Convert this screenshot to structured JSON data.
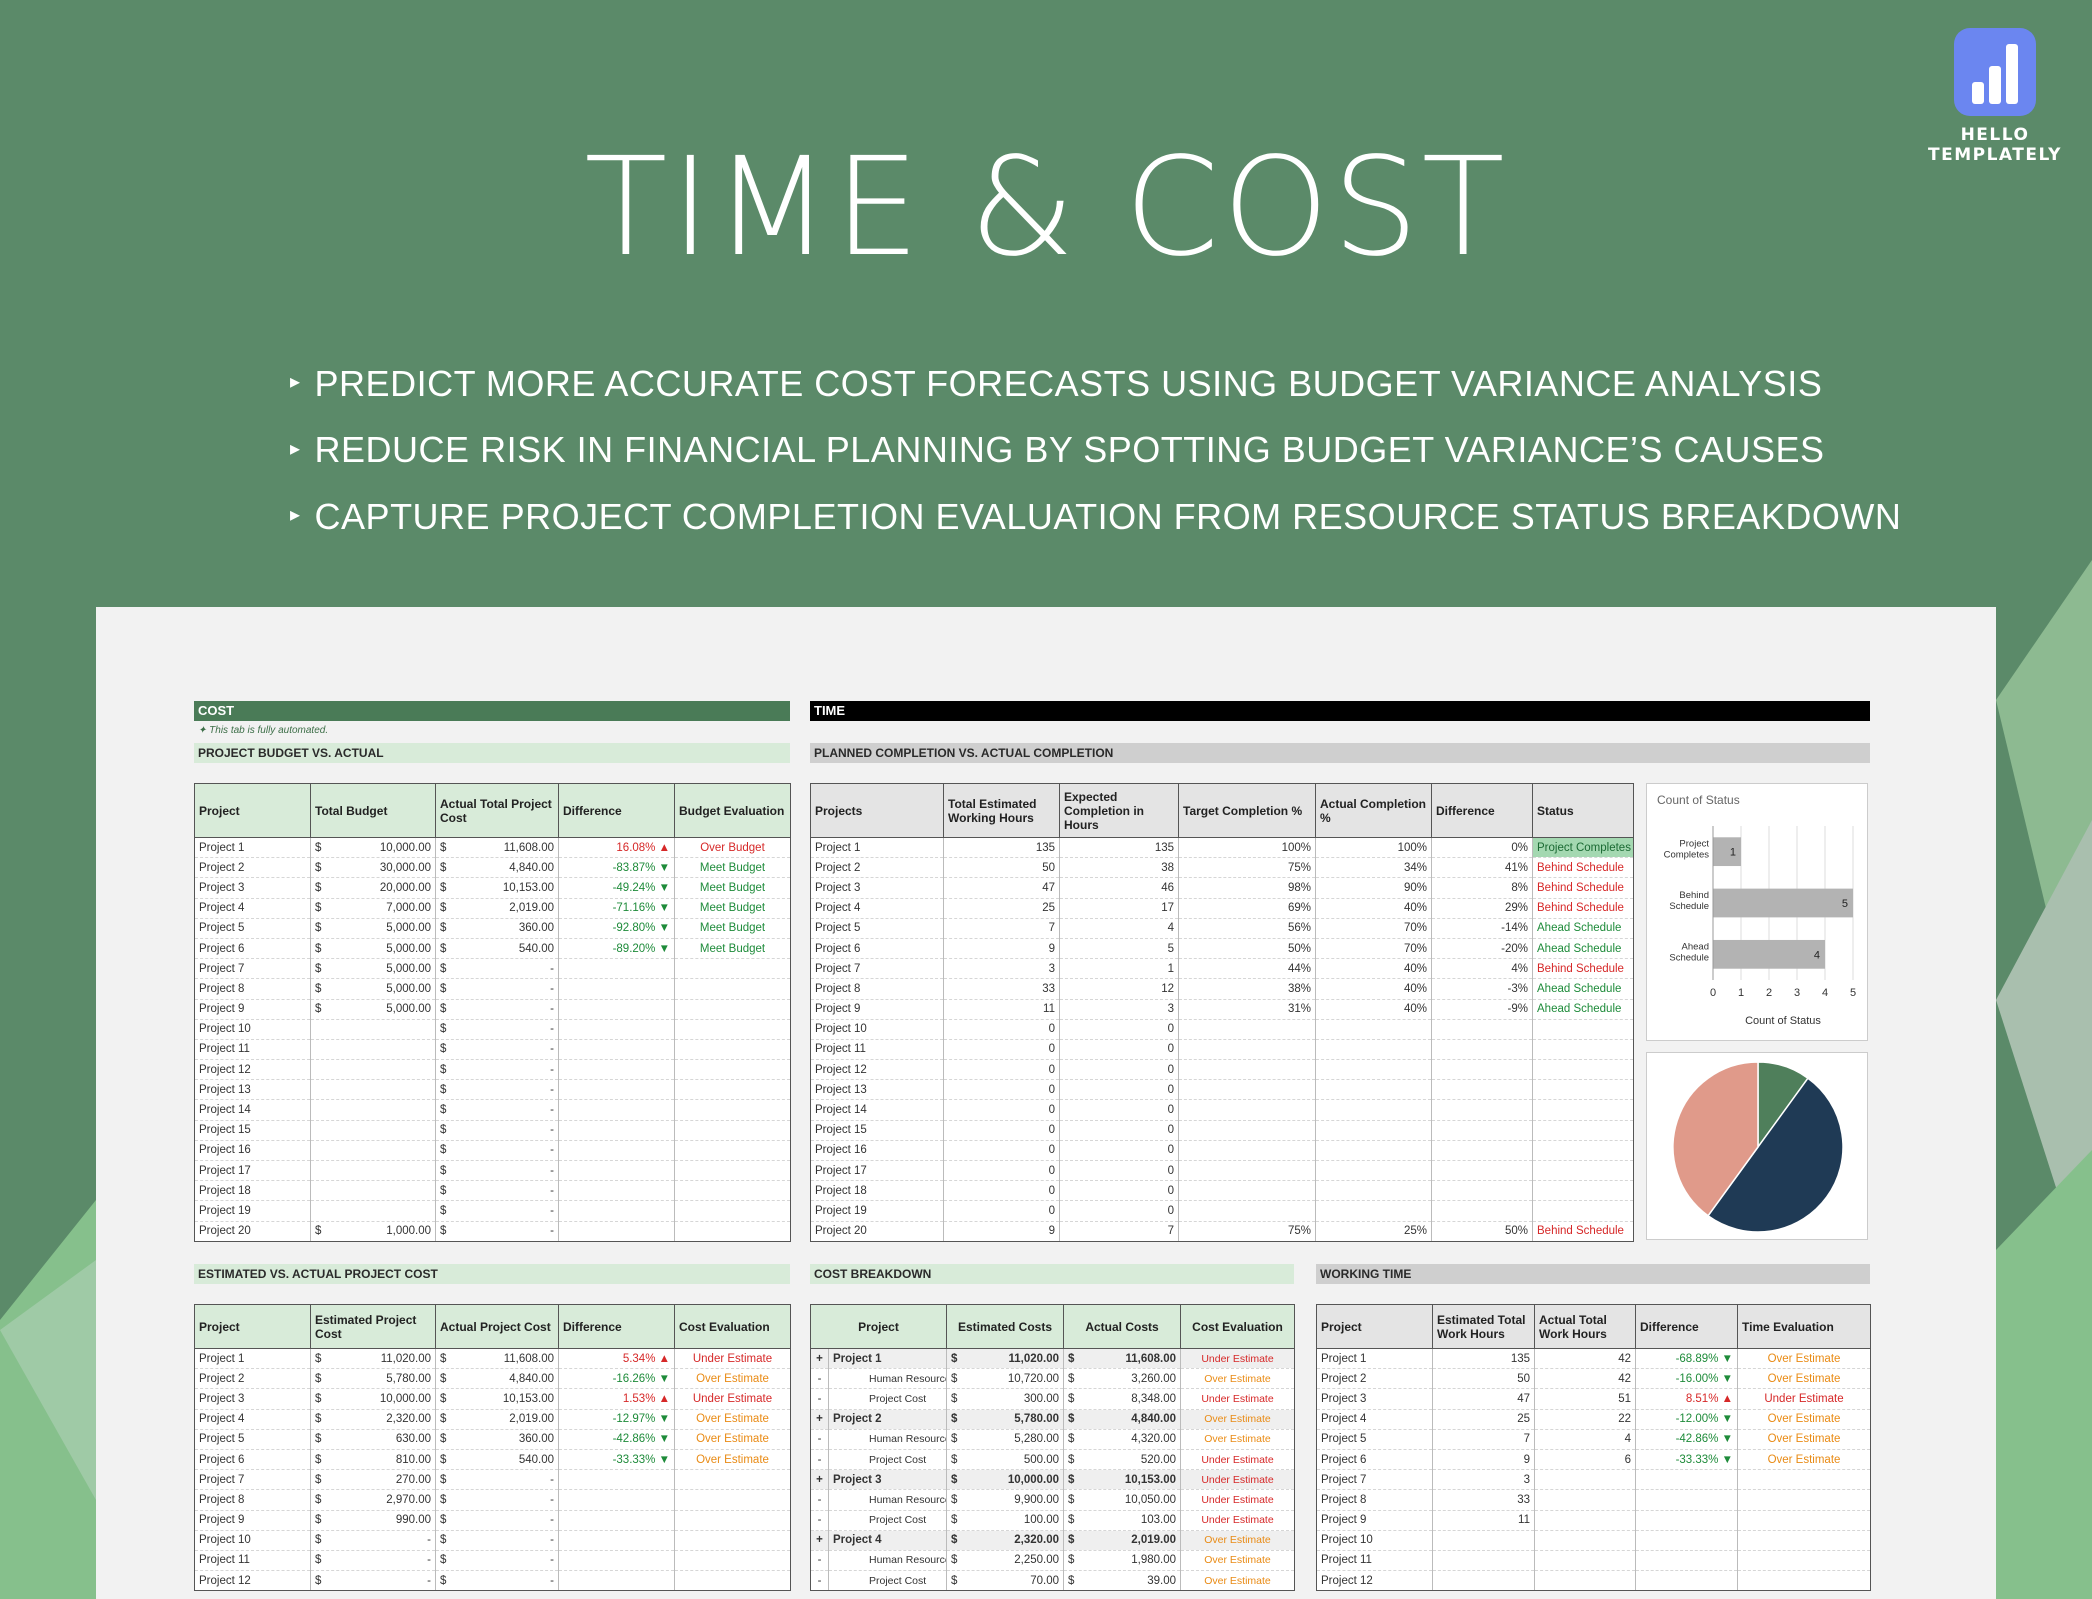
{
  "brand": {
    "name": "HELLO TEMPLATELY",
    "color": "#6b86f0"
  },
  "hero": {
    "title": "TIME & COST",
    "features": [
      "PREDICT MORE ACCURATE COST FORECASTS USING BUDGET VARIANCE ANALYSIS",
      "REDUCE RISK IN FINANCIAL PLANNING BY SPOTTING BUDGET VARIANCE’S CAUSES",
      "CAPTURE PROJECT COMPLETION EVALUATION FROM RESOURCE STATUS BREAKDOWN"
    ],
    "background": "#5b8a69"
  },
  "cost": {
    "header": "COST",
    "note": "✦ This tab is fully automated.",
    "budget_title": "PROJECT BUDGET VS. ACTUAL",
    "budget_columns": [
      "Project",
      "Total Budget",
      "Actual Total Project Cost",
      "Difference",
      "Budget Evaluation"
    ],
    "budget_rows": [
      [
        "Project 1",
        "10,000.00",
        "11,608.00",
        "16.08%",
        "up",
        "Over Budget"
      ],
      [
        "Project 2",
        "30,000.00",
        "4,840.00",
        "-83.87%",
        "down",
        "Meet Budget"
      ],
      [
        "Project 3",
        "20,000.00",
        "10,153.00",
        "-49.24%",
        "down",
        "Meet Budget"
      ],
      [
        "Project 4",
        "7,000.00",
        "2,019.00",
        "-71.16%",
        "down",
        "Meet Budget"
      ],
      [
        "Project 5",
        "5,000.00",
        "360.00",
        "-92.80%",
        "down",
        "Meet Budget"
      ],
      [
        "Project 6",
        "5,000.00",
        "540.00",
        "-89.20%",
        "down",
        "Meet Budget"
      ],
      [
        "Project 7",
        "5,000.00",
        "-",
        "",
        "",
        ""
      ],
      [
        "Project 8",
        "5,000.00",
        "-",
        "",
        "",
        ""
      ],
      [
        "Project 9",
        "5,000.00",
        "-",
        "",
        "",
        ""
      ],
      [
        "Project 10",
        "",
        "-",
        "",
        "",
        ""
      ],
      [
        "Project 11",
        "",
        "-",
        "",
        "",
        ""
      ],
      [
        "Project 12",
        "",
        "-",
        "",
        "",
        ""
      ],
      [
        "Project 13",
        "",
        "-",
        "",
        "",
        ""
      ],
      [
        "Project 14",
        "",
        "-",
        "",
        "",
        ""
      ],
      [
        "Project 15",
        "",
        "-",
        "",
        "",
        ""
      ],
      [
        "Project 16",
        "",
        "-",
        "",
        "",
        ""
      ],
      [
        "Project 17",
        "",
        "-",
        "",
        "",
        ""
      ],
      [
        "Project 18",
        "",
        "-",
        "",
        "",
        ""
      ],
      [
        "Project 19",
        "",
        "-",
        "",
        "",
        ""
      ],
      [
        "Project 20",
        "1,000.00",
        "-",
        "",
        "",
        ""
      ]
    ],
    "est_title": "ESTIMATED VS. ACTUAL PROJECT COST",
    "est_columns": [
      "Project",
      "Estimated Project Cost",
      "Actual Project Cost",
      "Difference",
      "Cost Evaluation"
    ],
    "est_rows": [
      [
        "Project 1",
        "11,020.00",
        "11,608.00",
        "5.34%",
        "up",
        "Under Estimate"
      ],
      [
        "Project 2",
        "5,780.00",
        "4,840.00",
        "-16.26%",
        "down",
        "Over Estimate"
      ],
      [
        "Project 3",
        "10,000.00",
        "10,153.00",
        "1.53%",
        "up",
        "Under Estimate"
      ],
      [
        "Project 4",
        "2,320.00",
        "2,019.00",
        "-12.97%",
        "down",
        "Over Estimate"
      ],
      [
        "Project 5",
        "630.00",
        "360.00",
        "-42.86%",
        "down",
        "Over Estimate"
      ],
      [
        "Project 6",
        "810.00",
        "540.00",
        "-33.33%",
        "down",
        "Over Estimate"
      ],
      [
        "Project 7",
        "270.00",
        "-",
        "",
        "",
        ""
      ],
      [
        "Project 8",
        "2,970.00",
        "-",
        "",
        "",
        ""
      ],
      [
        "Project 9",
        "990.00",
        "-",
        "",
        "",
        ""
      ],
      [
        "Project 10",
        "-",
        "-",
        "",
        "",
        ""
      ],
      [
        "Project 11",
        "-",
        "-",
        "",
        "",
        ""
      ],
      [
        "Project 12",
        "-",
        "-",
        "",
        "",
        ""
      ]
    ]
  },
  "time": {
    "header": "TIME",
    "planned_title": "PLANNED COMPLETION VS. ACTUAL COMPLETION",
    "planned_columns": [
      "Projects",
      "Total Estimated Working Hours",
      "Expected Completion in Hours",
      "Target Completion %",
      "Actual Completion %",
      "Difference",
      "Status"
    ],
    "planned_rows": [
      [
        "Project 1",
        "135",
        "135",
        "100%",
        "100%",
        "0%",
        "Project Completes"
      ],
      [
        "Project 2",
        "50",
        "38",
        "75%",
        "34%",
        "41%",
        "Behind Schedule"
      ],
      [
        "Project 3",
        "47",
        "46",
        "98%",
        "90%",
        "8%",
        "Behind Schedule"
      ],
      [
        "Project 4",
        "25",
        "17",
        "69%",
        "40%",
        "29%",
        "Behind Schedule"
      ],
      [
        "Project 5",
        "7",
        "4",
        "56%",
        "70%",
        "-14%",
        "Ahead Schedule"
      ],
      [
        "Project 6",
        "9",
        "5",
        "50%",
        "70%",
        "-20%",
        "Ahead Schedule"
      ],
      [
        "Project 7",
        "3",
        "1",
        "44%",
        "40%",
        "4%",
        "Behind Schedule"
      ],
      [
        "Project 8",
        "33",
        "12",
        "38%",
        "40%",
        "-3%",
        "Ahead Schedule"
      ],
      [
        "Project 9",
        "11",
        "3",
        "31%",
        "40%",
        "-9%",
        "Ahead Schedule"
      ],
      [
        "Project 10",
        "0",
        "0",
        "",
        "",
        "",
        ""
      ],
      [
        "Project 11",
        "0",
        "0",
        "",
        "",
        "",
        ""
      ],
      [
        "Project 12",
        "0",
        "0",
        "",
        "",
        "",
        ""
      ],
      [
        "Project 13",
        "0",
        "0",
        "",
        "",
        "",
        ""
      ],
      [
        "Project 14",
        "0",
        "0",
        "",
        "",
        "",
        ""
      ],
      [
        "Project 15",
        "0",
        "0",
        "",
        "",
        "",
        ""
      ],
      [
        "Project 16",
        "0",
        "0",
        "",
        "",
        "",
        ""
      ],
      [
        "Project 17",
        "0",
        "0",
        "",
        "",
        "",
        ""
      ],
      [
        "Project 18",
        "0",
        "0",
        "",
        "",
        "",
        ""
      ],
      [
        "Project 19",
        "0",
        "0",
        "",
        "",
        "",
        ""
      ],
      [
        "Project 20",
        "9",
        "7",
        "75%",
        "25%",
        "50%",
        "Behind Schedule"
      ]
    ],
    "breakdown_title": "COST BREAKDOWN",
    "breakdown_columns": [
      "Project",
      "Estimated Costs",
      "Actual Costs",
      "Cost Evaluation"
    ],
    "breakdown_rows": [
      [
        "+",
        "Project 1",
        "11,020.00",
        "11,608.00",
        "Under Estimate",
        "group"
      ],
      [
        "-",
        "Human Resource",
        "10,720.00",
        "3,260.00",
        "Over Estimate",
        "item"
      ],
      [
        "-",
        "Project Cost",
        "300.00",
        "8,348.00",
        "Under Estimate",
        "item"
      ],
      [
        "+",
        "Project 2",
        "5,780.00",
        "4,840.00",
        "Over Estimate",
        "group"
      ],
      [
        "-",
        "Human Resource",
        "5,280.00",
        "4,320.00",
        "Over Estimate",
        "item"
      ],
      [
        "-",
        "Project Cost",
        "500.00",
        "520.00",
        "Under Estimate",
        "item"
      ],
      [
        "+",
        "Project 3",
        "10,000.00",
        "10,153.00",
        "Under Estimate",
        "group"
      ],
      [
        "-",
        "Human Resource",
        "9,900.00",
        "10,050.00",
        "Under Estimate",
        "item"
      ],
      [
        "-",
        "Project Cost",
        "100.00",
        "103.00",
        "Under Estimate",
        "item"
      ],
      [
        "+",
        "Project 4",
        "2,320.00",
        "2,019.00",
        "Over Estimate",
        "group"
      ],
      [
        "-",
        "Human Resource",
        "2,250.00",
        "1,980.00",
        "Over Estimate",
        "item"
      ],
      [
        "-",
        "Project Cost",
        "70.00",
        "39.00",
        "Over Estimate",
        "item"
      ]
    ],
    "working_title": "WORKING TIME",
    "working_columns": [
      "Project",
      "Estimated Total Work Hours",
      "Actual Total Work Hours",
      "Difference",
      "Time Evaluation"
    ],
    "working_rows": [
      [
        "Project 1",
        "135",
        "42",
        "-68.89%",
        "down",
        "Over Estimate"
      ],
      [
        "Project 2",
        "50",
        "42",
        "-16.00%",
        "down",
        "Over Estimate"
      ],
      [
        "Project 3",
        "47",
        "51",
        "8.51%",
        "up",
        "Under Estimate"
      ],
      [
        "Project 4",
        "25",
        "22",
        "-12.00%",
        "down",
        "Over Estimate"
      ],
      [
        "Project 5",
        "7",
        "4",
        "-42.86%",
        "down",
        "Over Estimate"
      ],
      [
        "Project 6",
        "9",
        "6",
        "-33.33%",
        "down",
        "Over Estimate"
      ],
      [
        "Project 7",
        "3",
        "",
        "",
        "",
        ""
      ],
      [
        "Project 8",
        "33",
        "",
        "",
        "",
        ""
      ],
      [
        "Project 9",
        "11",
        "",
        "",
        "",
        ""
      ],
      [
        "Project 10",
        "",
        "",
        "",
        "",
        ""
      ],
      [
        "Project 11",
        "",
        "",
        "",
        "",
        ""
      ],
      [
        "Project 12",
        "",
        "",
        "",
        "",
        ""
      ]
    ]
  },
  "colors": {
    "green_header": "#4a7b57",
    "black_header": "#000000",
    "up_red": "#d62828",
    "down_green": "#1e8b3a",
    "over_orange": "#e98b15"
  },
  "currency_symbol": "$",
  "chart_data": [
    {
      "type": "bar",
      "orientation": "horizontal",
      "title": "Count of Status",
      "xlabel": "Count of Status",
      "categories": [
        "Project Completes",
        "Behind Schedule",
        "Ahead Schedule"
      ],
      "values": [
        1,
        5,
        4
      ],
      "xlim": [
        0,
        5
      ],
      "xticks": [
        "0",
        "1",
        "2",
        "3",
        "4",
        "5"
      ],
      "bar_color": "#b3b3b3"
    },
    {
      "type": "pie",
      "values": [
        1,
        5,
        4
      ],
      "colors": [
        "#4f7f5b",
        "#1f3a55",
        "#e09a8a"
      ]
    }
  ]
}
